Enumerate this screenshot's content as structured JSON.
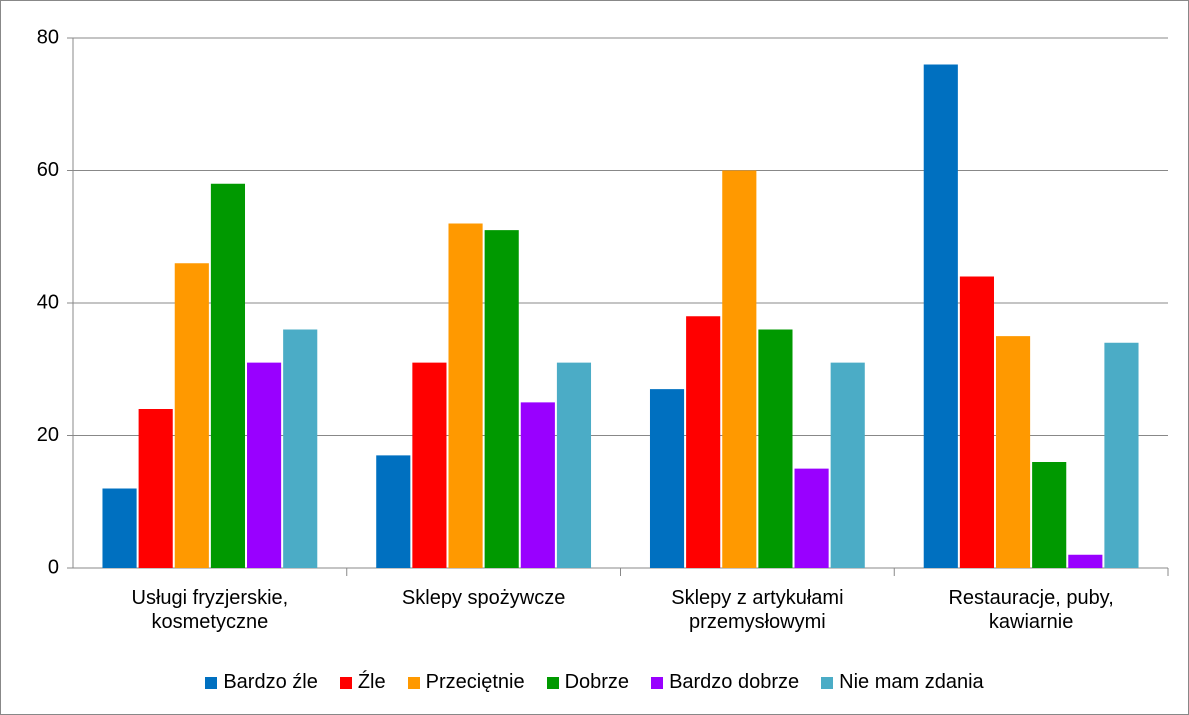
{
  "chart_data": {
    "type": "bar",
    "categories": [
      "Usługi fryzjerskie, kosmetyczne",
      "Sklepy spożywcze",
      "Sklepy z artykułami przemysłowymi",
      "Restauracje, puby, kawiarnie"
    ],
    "series": [
      {
        "name": "Bardzo źle",
        "color": "#0070c0",
        "values": [
          12,
          17,
          27,
          76
        ]
      },
      {
        "name": "Źle",
        "color": "#ff0000",
        "values": [
          24,
          31,
          38,
          44
        ]
      },
      {
        "name": "Przeciętnie",
        "color": "#ff9900",
        "values": [
          46,
          52,
          60,
          35
        ]
      },
      {
        "name": "Dobrze",
        "color": "#009900",
        "values": [
          58,
          51,
          36,
          16
        ]
      },
      {
        "name": "Bardzo dobrze",
        "color": "#9900ff",
        "values": [
          31,
          25,
          15,
          2
        ]
      },
      {
        "name": "Nie mam zdania",
        "color": "#4bacc6",
        "values": [
          36,
          31,
          31,
          34
        ]
      }
    ],
    "ylim": [
      0,
      80
    ],
    "yticks": [
      0,
      20,
      40,
      60,
      80
    ],
    "grid": true,
    "legend": "bottom"
  }
}
